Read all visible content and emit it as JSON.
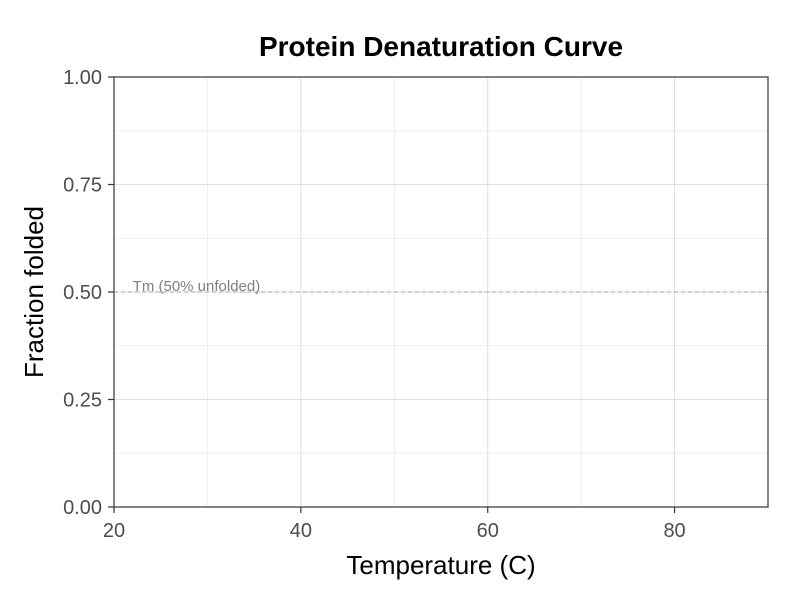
{
  "chart_data": {
    "type": "line",
    "title": "Protein Denaturation Curve",
    "xlabel": "Temperature (C)",
    "ylabel": "Fraction folded",
    "xlim": [
      20,
      90
    ],
    "ylim": [
      0,
      1
    ],
    "x_ticks": [
      20,
      40,
      60,
      80
    ],
    "x_tick_labels": [
      "20",
      "40",
      "60",
      "80"
    ],
    "y_ticks": [
      0,
      0.25,
      0.5,
      0.75,
      1
    ],
    "y_tick_labels": [
      "0.00",
      "0.25",
      "0.50",
      "0.75",
      "1.00"
    ],
    "series": [],
    "reference_lines": [
      {
        "orientation": "horizontal",
        "y": 0.5,
        "style": "dashed",
        "color": "#a6a6a6"
      }
    ],
    "annotations": [
      {
        "text": "Tm (50% unfolded)",
        "x": 22,
        "y": 0.5
      }
    ],
    "grid": true,
    "legend": "none"
  }
}
